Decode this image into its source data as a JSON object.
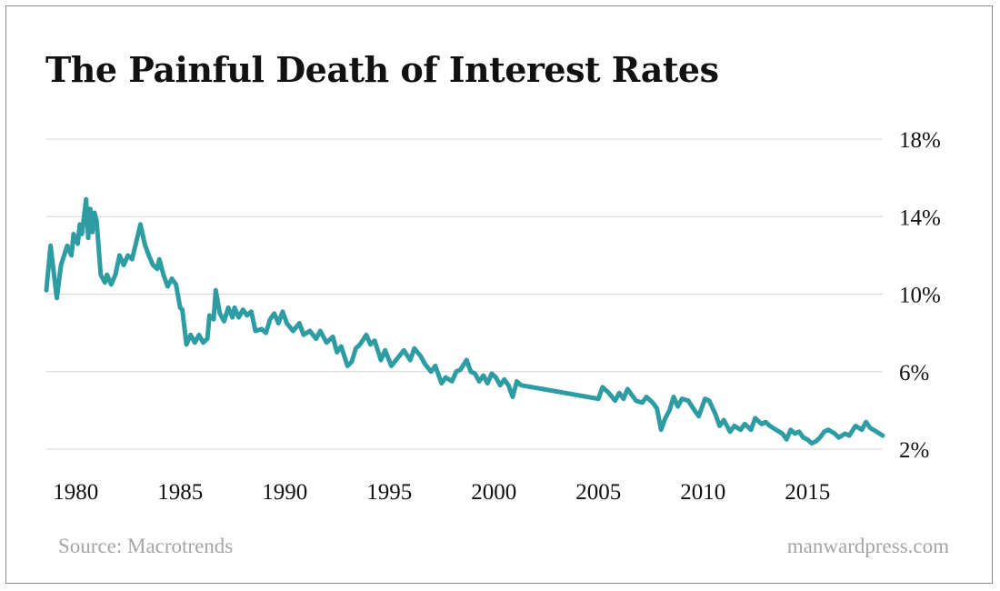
{
  "colors": {
    "line": "#2e9ca3",
    "grid": "#d6d6d6",
    "text": "#111111",
    "muted": "#a5a5a5"
  },
  "footer": {
    "source": "Source: Macrotrends",
    "credit": "manwardpress.com"
  },
  "chart_data": {
    "type": "line",
    "title": "The Painful Death of Interest Rates",
    "xlabel": "",
    "ylabel": "",
    "xlim": [
      1978.6,
      2018.6
    ],
    "ylim": [
      2,
      18
    ],
    "x_ticks": [
      1980,
      1985,
      1990,
      1995,
      2000,
      2005,
      2010,
      2015
    ],
    "x_tick_labels": [
      "1980",
      "1985",
      "1990",
      "1995",
      "2000",
      "2005",
      "2010",
      "2015"
    ],
    "y_ticks": [
      2,
      6,
      10,
      14,
      18
    ],
    "y_tick_labels": [
      "2%",
      "6%",
      "10%",
      "14%",
      "18%"
    ],
    "y_axis_side": "right",
    "grid": "horizontal",
    "legend": "none",
    "series": [
      {
        "x": [
          1978.6,
          1978.8,
          1979.1,
          1979.3,
          1979.6,
          1979.8,
          1979.9,
          1980.1,
          1980.2,
          1980.3,
          1980.5,
          1980.6,
          1980.7,
          1980.8,
          1980.9,
          1981.0,
          1981.2,
          1981.4,
          1981.5,
          1981.7,
          1981.9,
          1982.1,
          1982.3,
          1982.5,
          1982.7,
          1982.9,
          1983.1,
          1983.3,
          1983.5,
          1983.7,
          1983.9,
          1984.0,
          1984.2,
          1984.4,
          1984.6,
          1984.8,
          1985.0,
          1985.1,
          1985.3,
          1985.5,
          1985.7,
          1985.9,
          1986.1,
          1986.3,
          1986.4,
          1986.6,
          1986.7,
          1986.9,
          1987.1,
          1987.3,
          1987.5,
          1987.6,
          1987.8,
          1988.0,
          1988.2,
          1988.4,
          1988.6,
          1988.9,
          1989.1,
          1989.3,
          1989.5,
          1989.7,
          1989.9,
          1990.1,
          1990.4,
          1990.7,
          1990.9,
          1991.2,
          1991.5,
          1991.7,
          1992.0,
          1992.3,
          1992.5,
          1992.7,
          1993.0,
          1993.2,
          1993.4,
          1993.6,
          1993.9,
          1994.1,
          1994.3,
          1994.6,
          1994.8,
          1995.1,
          1995.4,
          1995.7,
          1996.0,
          1996.2,
          1996.5,
          1996.7,
          1997.0,
          1997.2,
          1997.5,
          1997.7,
          1998.0,
          1998.2,
          1998.4,
          1998.7,
          1998.9,
          1999.1,
          1999.3,
          1999.5,
          1999.7,
          1999.9,
          2000.1,
          2000.3,
          2000.5,
          2000.7,
          2000.9,
          2001.1,
          2001.3,
          2005.0,
          2005.2,
          2005.5,
          2005.8,
          2006.0,
          2006.2,
          2006.4,
          2006.6,
          2006.8,
          2007.1,
          2007.3,
          2007.6,
          2007.8,
          2008.0,
          2008.2,
          2008.4,
          2008.6,
          2008.8,
          2009.0,
          2009.3,
          2009.6,
          2009.8,
          2010.1,
          2010.3,
          2010.6,
          2010.8,
          2011.0,
          2011.3,
          2011.5,
          2011.8,
          2012.0,
          2012.3,
          2012.5,
          2012.8,
          2013.0,
          2013.2,
          2013.5,
          2013.8,
          2014.0,
          2014.2,
          2014.4,
          2014.6,
          2014.8,
          2015.0,
          2015.2,
          2015.4,
          2015.6,
          2015.8,
          2016.0,
          2016.3,
          2016.5,
          2016.8,
          2017.0,
          2017.3,
          2017.6,
          2017.8,
          2018.0,
          2018.3,
          2018.6
        ],
        "values": [
          10.2,
          12.5,
          9.8,
          11.5,
          12.5,
          12.0,
          13.1,
          12.6,
          13.6,
          13.1,
          14.9,
          12.9,
          14.4,
          13.2,
          14.2,
          13.8,
          11.0,
          10.6,
          11.0,
          10.5,
          11.0,
          12.0,
          11.5,
          12.0,
          11.8,
          12.7,
          13.6,
          12.6,
          12.0,
          11.5,
          11.3,
          11.8,
          11.0,
          10.4,
          10.8,
          10.5,
          9.3,
          9.2,
          7.4,
          7.9,
          7.5,
          7.9,
          7.5,
          7.7,
          8.9,
          8.7,
          10.2,
          9.0,
          8.6,
          9.3,
          8.8,
          9.3,
          8.8,
          9.2,
          8.9,
          9.1,
          8.1,
          8.2,
          8.0,
          8.7,
          9.0,
          8.5,
          9.1,
          8.5,
          8.1,
          8.5,
          7.9,
          8.1,
          7.7,
          8.1,
          7.5,
          7.8,
          7.0,
          7.3,
          6.3,
          6.5,
          7.2,
          7.4,
          7.9,
          7.4,
          7.6,
          6.6,
          7.1,
          6.3,
          6.7,
          7.1,
          6.6,
          7.2,
          6.8,
          6.4,
          6.0,
          6.3,
          5.4,
          5.7,
          5.5,
          6.0,
          6.1,
          6.6,
          6.0,
          5.9,
          5.5,
          5.8,
          5.4,
          5.9,
          5.7,
          5.3,
          5.6,
          5.3,
          4.7,
          5.5,
          5.3,
          4.6,
          5.2,
          4.9,
          4.5,
          4.9,
          4.6,
          5.1,
          4.8,
          4.5,
          4.4,
          4.7,
          4.4,
          4.1,
          3.0,
          3.6,
          4.0,
          4.7,
          4.2,
          4.6,
          4.5,
          4.0,
          3.7,
          4.6,
          4.5,
          3.8,
          3.2,
          3.5,
          2.9,
          3.2,
          3.0,
          3.3,
          3.0,
          3.6,
          3.3,
          3.4,
          3.2,
          3.0,
          2.8,
          2.5,
          3.0,
          2.8,
          2.9,
          2.6,
          2.5,
          2.3,
          2.4,
          2.6,
          2.9,
          3.0,
          2.8,
          2.6,
          2.8,
          2.7,
          3.2,
          3.0,
          3.4,
          3.1,
          2.9,
          2.7
        ]
      }
    ]
  }
}
